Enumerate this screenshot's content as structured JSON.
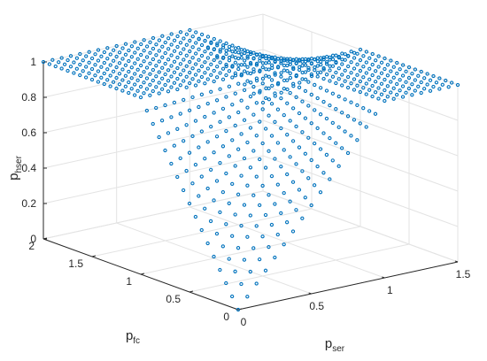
{
  "chart_data": {
    "type": "scatter",
    "xlabel": {
      "base": "p",
      "sub": "ser"
    },
    "ylabel": {
      "base": "p",
      "sub": "fc"
    },
    "zlabel": {
      "base": "p",
      "sub": "hser"
    },
    "xlim": [
      0,
      1.5
    ],
    "ylim": [
      0,
      2
    ],
    "zlim": [
      0,
      1
    ],
    "xticks": [
      "0",
      "0.5",
      "1",
      "1.5"
    ],
    "yticks": [
      "0",
      "0.5",
      "1",
      "1.5",
      "2"
    ],
    "zticks": [
      "0",
      "0.2",
      "0.4",
      "0.6",
      "0.8",
      "1"
    ],
    "grid": true,
    "marker_color": "#0072BD",
    "surface": {
      "description_values": "p_hser = min(1, p_ser + p_fc - p_ser * p_fc) sampled on a grid",
      "x_start": 0,
      "x_end": 1.5,
      "x_step": 0.0625,
      "y_start": 0,
      "y_end": 2,
      "y_step": 0.0625
    }
  }
}
